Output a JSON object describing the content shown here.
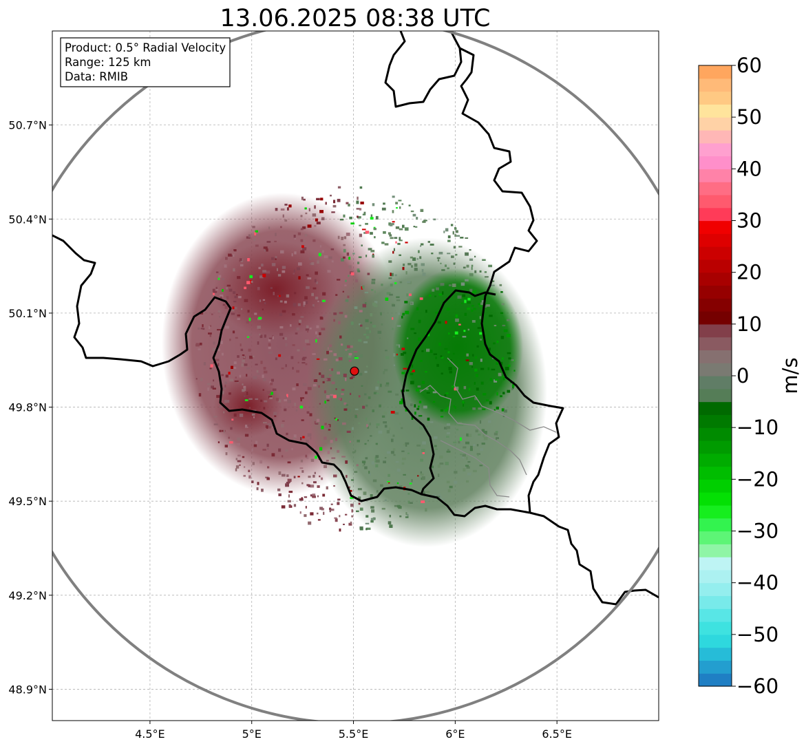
{
  "title": "13.06.2025 08:38 UTC",
  "info_box": {
    "product": "Product: 0.5° Radial Velocity",
    "range": "Range: 125 km",
    "data": "Data: RMIB"
  },
  "map": {
    "lon_range": [
      4.02,
      7.0
    ],
    "lat_range": [
      48.8,
      51.0
    ],
    "lon_ticks": [
      {
        "value": 4.5,
        "label": "4.5°E"
      },
      {
        "value": 5.0,
        "label": "5°E"
      },
      {
        "value": 5.5,
        "label": "5.5°E"
      },
      {
        "value": 6.0,
        "label": "6°E"
      },
      {
        "value": 6.5,
        "label": "6.5°E"
      }
    ],
    "lat_ticks": [
      {
        "value": 50.7,
        "label": "50.7°N"
      },
      {
        "value": 50.4,
        "label": "50.4°N"
      },
      {
        "value": 50.1,
        "label": "50.1°N"
      },
      {
        "value": 49.8,
        "label": "49.8°N"
      },
      {
        "value": 49.5,
        "label": "49.5°N"
      },
      {
        "value": 49.2,
        "label": "49.2°N"
      },
      {
        "value": 48.9,
        "label": "48.9°N"
      }
    ],
    "radar_site": {
      "lon": 5.505,
      "lat": 49.915
    },
    "range_ring_km": 125
  },
  "colorbar": {
    "label": "m/s",
    "min": -60,
    "max": 60,
    "ticks": [
      {
        "value": 60,
        "label": "60"
      },
      {
        "value": 50,
        "label": "50"
      },
      {
        "value": 40,
        "label": "40"
      },
      {
        "value": 30,
        "label": "30"
      },
      {
        "value": 20,
        "label": "20"
      },
      {
        "value": 10,
        "label": "10"
      },
      {
        "value": 0,
        "label": "0"
      },
      {
        "value": -10,
        "label": "−10"
      },
      {
        "value": -20,
        "label": "−20"
      },
      {
        "value": -30,
        "label": "−30"
      },
      {
        "value": -40,
        "label": "−40"
      },
      {
        "value": -50,
        "label": "−50"
      },
      {
        "value": -60,
        "label": "−60"
      }
    ],
    "colors": [
      "#1f7fc4",
      "#239ecf",
      "#26bcd8",
      "#2ed8de",
      "#3ee2e0",
      "#58e6e6",
      "#78eaea",
      "#94eeee",
      "#acf1f1",
      "#bef4f4",
      "#8ff5a6",
      "#5df576",
      "#33f34f",
      "#16ee1e",
      "#04e004",
      "#00cf00",
      "#00bd00",
      "#00ac00",
      "#009b00",
      "#008b00",
      "#007a00",
      "#006a00",
      "#557d57",
      "#607d66",
      "#7a7a72",
      "#867070",
      "#8a5a61",
      "#823f4a",
      "#750000",
      "#850000",
      "#960000",
      "#a80000",
      "#ba0000",
      "#cc0000",
      "#de0000",
      "#f00000",
      "#ff3b58",
      "#ff5a6e",
      "#ff6d84",
      "#ff82a8",
      "#ff8fca",
      "#ffa0cf",
      "#ffb7b6",
      "#ffd2a6",
      "#ffe49c",
      "#ffc983",
      "#ffba78",
      "#ffa65e"
    ]
  }
}
